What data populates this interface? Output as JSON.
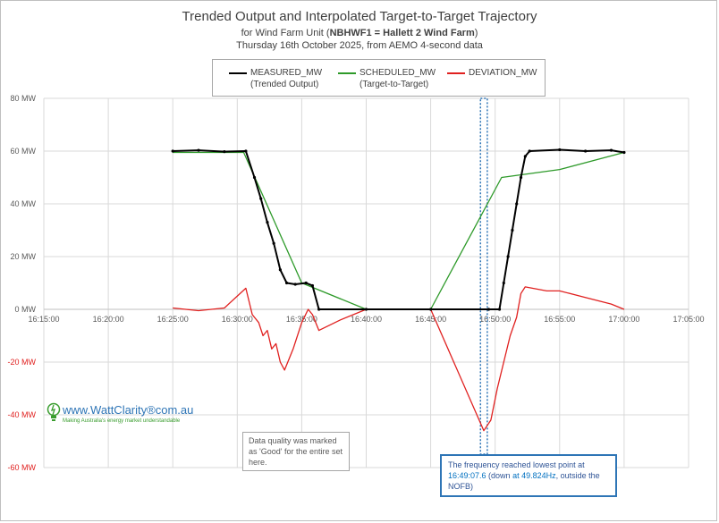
{
  "titles": {
    "line1": "Trended Output and Interpolated Target-to-Target Trajectory",
    "line2_pre": "for Wind Farm Unit (",
    "line2_bold": "NBHWF1 = Hallett 2 Wind Farm",
    "line2_post": ")",
    "line3": "Thursday 16th October 2025, from AEMO 4-second data"
  },
  "legend": {
    "measured": {
      "label": "MEASURED_MW",
      "sub": "(Trended Output)",
      "color": "#000000"
    },
    "scheduled": {
      "label": "SCHEDULED_MW",
      "sub": "(Target-to-Target)",
      "color": "#2e9a2a"
    },
    "deviation": {
      "label": "DEVIATION_MW",
      "color": "#e0201f"
    }
  },
  "notes": {
    "quality": "Data quality was marked as 'Good' for the entire set here.",
    "freq_a": "The frequency reached lowest point at ",
    "freq_time": "16:49:07.6",
    "freq_b": " (down ",
    "freq_hz": "at 49.824Hz",
    "freq_c": ", outside the NOFB)"
  },
  "logo": {
    "text": "www.WattClarity®com.au",
    "tagline": "Making Australia's energy market understandable"
  },
  "chart_data": {
    "type": "line",
    "x_unit": "time (hh:mm:ss)",
    "xlim": [
      "16:15:00",
      "17:05:00"
    ],
    "x_ticks": [
      "16:15:00",
      "16:20:00",
      "16:25:00",
      "16:30:00",
      "16:35:00",
      "16:40:00",
      "16:45:00",
      "16:50:00",
      "16:55:00",
      "17:00:00",
      "17:05:00"
    ],
    "ylim": [
      -60,
      80
    ],
    "y_ticks": [
      {
        "v": 80,
        "label": "80 MW"
      },
      {
        "v": 60,
        "label": "60 MW"
      },
      {
        "v": 40,
        "label": "40 MW"
      },
      {
        "v": 20,
        "label": "20 MW"
      },
      {
        "v": 0,
        "label": "0 MW"
      },
      {
        "v": -20,
        "label": "-20 MW"
      },
      {
        "v": -40,
        "label": "-40 MW"
      },
      {
        "v": -60,
        "label": "-60 MW"
      }
    ],
    "grid": true,
    "highlight_window": [
      "16:49:00",
      "16:49:15"
    ],
    "series": [
      {
        "name": "MEASURED_MW",
        "color": "#000000",
        "markers": true,
        "points": [
          [
            "16:25:00",
            60
          ],
          [
            "16:27:00",
            60.3
          ],
          [
            "16:29:00",
            59.8
          ],
          [
            "16:30:40",
            60
          ],
          [
            "16:31:20",
            50
          ],
          [
            "16:31:50",
            42
          ],
          [
            "16:32:20",
            33
          ],
          [
            "16:32:50",
            25
          ],
          [
            "16:33:20",
            15
          ],
          [
            "16:33:50",
            10
          ],
          [
            "16:34:30",
            9.5
          ],
          [
            "16:35:20",
            10
          ],
          [
            "16:35:50",
            9
          ],
          [
            "16:36:20",
            0
          ],
          [
            "16:40:00",
            0
          ],
          [
            "16:45:00",
            0
          ],
          [
            "16:49:30",
            0
          ],
          [
            "16:50:20",
            0
          ],
          [
            "16:50:40",
            10
          ],
          [
            "16:51:00",
            20
          ],
          [
            "16:51:20",
            30
          ],
          [
            "16:51:40",
            40
          ],
          [
            "16:52:00",
            50
          ],
          [
            "16:52:20",
            58
          ],
          [
            "16:52:40",
            60
          ],
          [
            "16:55:00",
            60.5
          ],
          [
            "16:57:00",
            60
          ],
          [
            "16:59:00",
            60.3
          ],
          [
            "17:00:00",
            59.5
          ]
        ]
      },
      {
        "name": "SCHEDULED_MW",
        "color": "#2e9a2a",
        "markers": false,
        "points": [
          [
            "16:25:00",
            59.5
          ],
          [
            "16:30:30",
            59.5
          ],
          [
            "16:35:00",
            10
          ],
          [
            "16:40:00",
            0
          ],
          [
            "16:45:00",
            0
          ],
          [
            "16:50:30",
            50
          ],
          [
            "16:55:00",
            53
          ],
          [
            "17:00:00",
            59.5
          ]
        ]
      },
      {
        "name": "DEVIATION_MW",
        "color": "#e0201f",
        "markers": false,
        "points": [
          [
            "16:25:00",
            0.5
          ],
          [
            "16:27:00",
            -0.5
          ],
          [
            "16:29:00",
            0.5
          ],
          [
            "16:30:40",
            8
          ],
          [
            "16:31:10",
            -2
          ],
          [
            "16:31:40",
            -5
          ],
          [
            "16:32:00",
            -10
          ],
          [
            "16:32:20",
            -8
          ],
          [
            "16:32:40",
            -15
          ],
          [
            "16:33:00",
            -13
          ],
          [
            "16:33:20",
            -20
          ],
          [
            "16:33:40",
            -23
          ],
          [
            "16:34:20",
            -15
          ],
          [
            "16:35:00",
            -5
          ],
          [
            "16:35:30",
            0
          ],
          [
            "16:35:50",
            -2
          ],
          [
            "16:36:20",
            -8
          ],
          [
            "16:38:00",
            -4
          ],
          [
            "16:40:00",
            0
          ],
          [
            "16:45:00",
            0
          ],
          [
            "16:49:07",
            -46
          ],
          [
            "16:49:40",
            -42
          ],
          [
            "16:50:10",
            -30
          ],
          [
            "16:50:40",
            -20
          ],
          [
            "16:51:10",
            -10
          ],
          [
            "16:51:40",
            -3
          ],
          [
            "16:52:00",
            6
          ],
          [
            "16:52:20",
            8.5
          ],
          [
            "16:54:00",
            7
          ],
          [
            "16:55:00",
            7
          ],
          [
            "16:57:00",
            4.5
          ],
          [
            "16:59:00",
            2
          ],
          [
            "17:00:00",
            0
          ]
        ]
      }
    ]
  }
}
